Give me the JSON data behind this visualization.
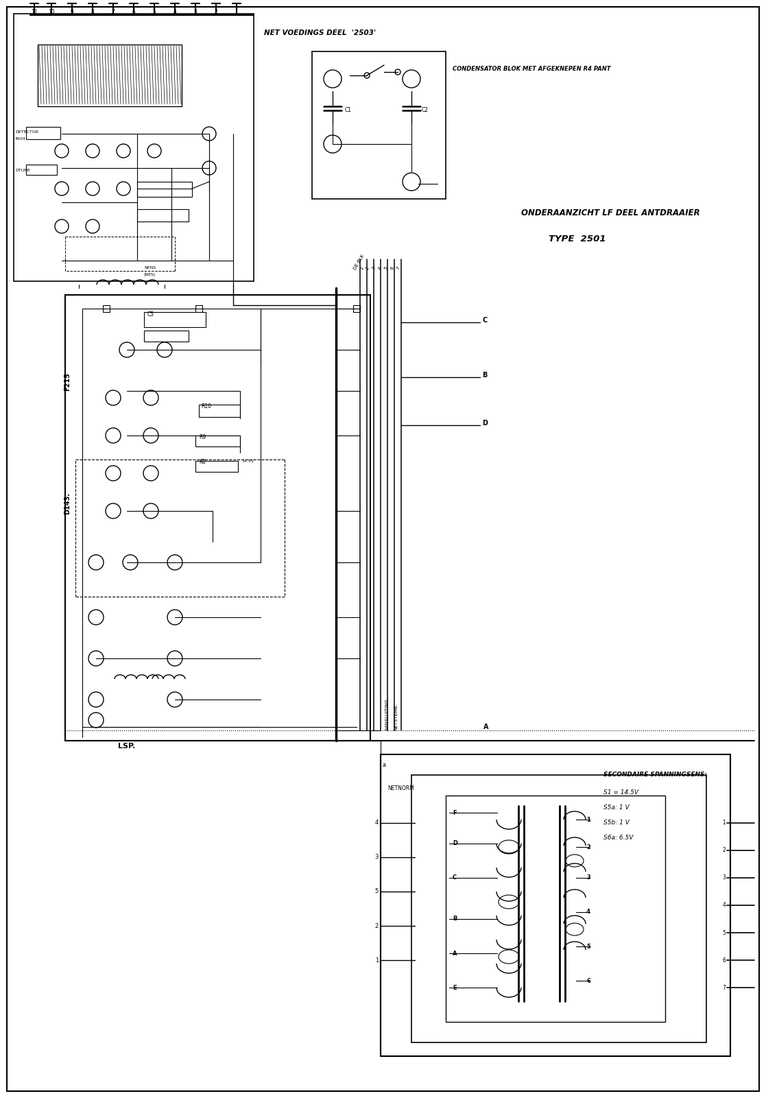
{
  "title": "ONDERAANZICHT LF DEEL ANTDRAAIER\nTYPE 2501",
  "background_color": "#ffffff",
  "line_color": "#000000",
  "fig_width": 11.17,
  "fig_height": 16.01,
  "dpi": 100,
  "border_color": "#000000",
  "text_color": "#000000",
  "label_top_left": "NET VOEDINGS DEEL '2503'",
  "label_cap": "CONDENSATOR BLOK MET AFGEKNEPEN R4 PANT",
  "label_lsp": "LSP.",
  "label_f215": "F215",
  "label_d143": "D143.",
  "label_sec": "SECONDAIRE SPANNINGSENS:",
  "label_s1": "S1 = 14.5V",
  "label_s5a": "S5a: 1 V",
  "label_s5b": "S5b: 1 V",
  "label_s6a": "S6a: 6.5V"
}
